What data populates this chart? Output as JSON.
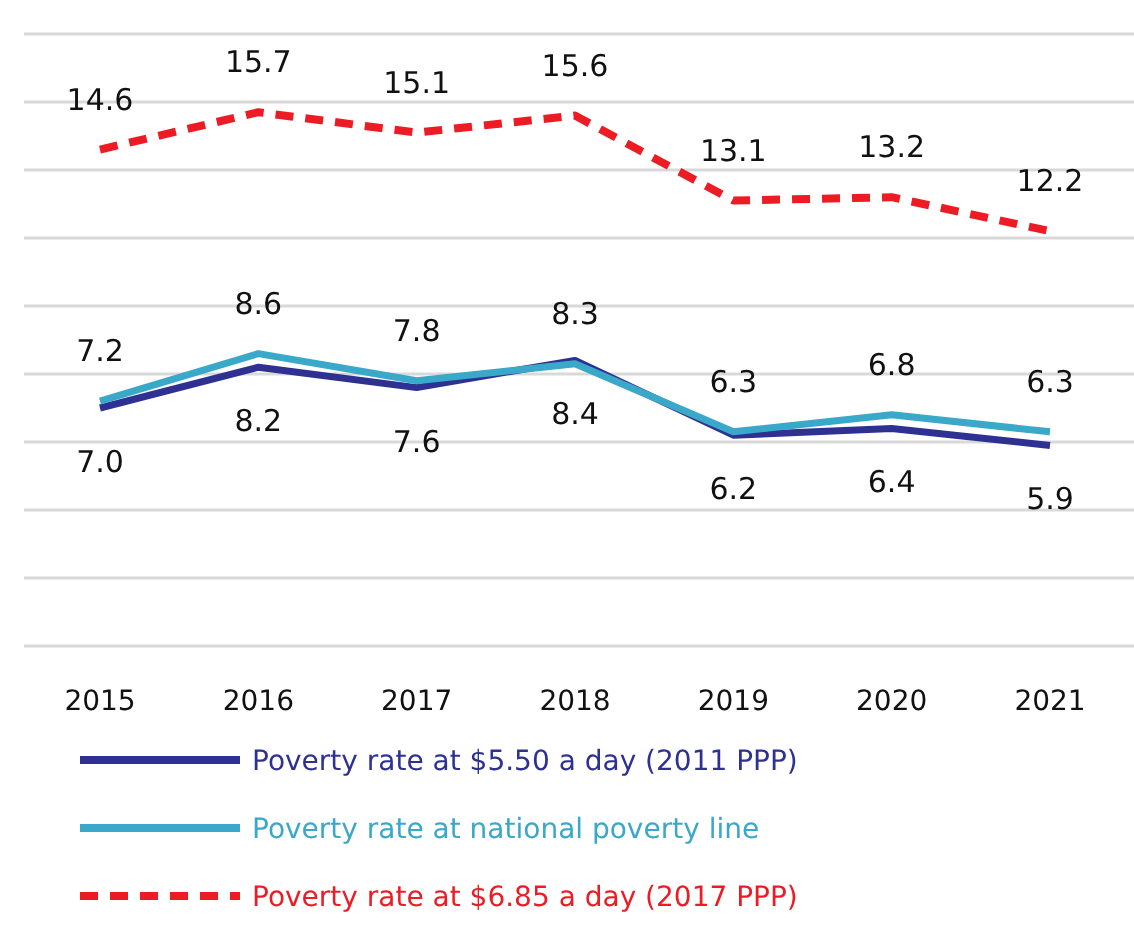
{
  "chart_data": {
    "type": "line",
    "categories": [
      "2015",
      "2016",
      "2017",
      "2018",
      "2019",
      "2020",
      "2021"
    ],
    "series": [
      {
        "name": "Poverty rate at $5.50 a day (2011 PPP)",
        "color": "#2e3192",
        "values": [
          7.0,
          8.2,
          7.6,
          8.4,
          6.2,
          6.4,
          5.9
        ],
        "value_labels": [
          "7.0",
          "8.2",
          "7.6",
          "8.4",
          "6.2",
          "6.4",
          "5.9"
        ]
      },
      {
        "name": "Poverty rate at national poverty line",
        "color": "#3aa8c8",
        "values": [
          7.2,
          8.6,
          7.8,
          8.3,
          6.3,
          6.8,
          6.3
        ]
      },
      {
        "name": "Poverty rate at $6.85 a day (2017 PPP)",
        "color": "#ed1c24",
        "values": [
          14.6,
          15.7,
          15.1,
          15.6,
          13.1,
          13.2,
          12.2
        ],
        "line_style": "dashed"
      }
    ],
    "ylim": [
      0,
      18
    ],
    "yticks": [
      {
        "value": 0,
        "label": null
      },
      {
        "value": 2,
        "label": null
      },
      {
        "value": 4,
        "label": null
      },
      {
        "value": 6,
        "label": null
      },
      {
        "value": 8,
        "label": null
      },
      {
        "value": 10,
        "label": null
      },
      {
        "value": 12,
        "label": null
      },
      {
        "value": 14,
        "label": null
      },
      {
        "value": 16,
        "label": null
      },
      {
        "value": 18,
        "label": null
      }
    ],
    "tick_labels": "x",
    "grid": "y",
    "data_labels": true,
    "legend": "bottom",
    "marker": "none"
  }
}
